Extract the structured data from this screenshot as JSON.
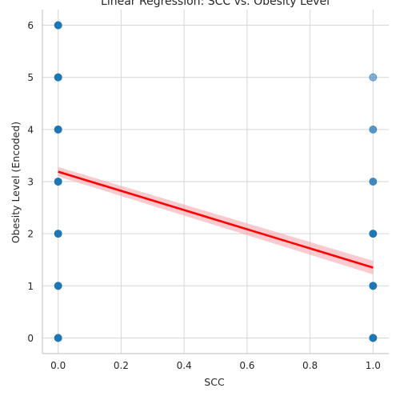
{
  "chart_data": {
    "type": "scatter",
    "title": "Linear Regression: SCC vs. Obesity Level",
    "xlabel": "SCC",
    "ylabel": "Obesity Level (Encoded)",
    "xlim": [
      -0.05,
      1.05
    ],
    "ylim": [
      -0.3,
      6.3
    ],
    "x_ticks": [
      0.0,
      0.2,
      0.4,
      0.6,
      0.8,
      1.0
    ],
    "x_tick_labels": [
      "0.0",
      "0.2",
      "0.4",
      "0.6",
      "0.8",
      "1.0"
    ],
    "y_ticks": [
      0,
      1,
      2,
      3,
      4,
      5,
      6
    ],
    "y_tick_labels": [
      "0",
      "1",
      "2",
      "3",
      "4",
      "5",
      "6"
    ],
    "grid": true,
    "series": [
      {
        "points": [
          {
            "x": 0,
            "y": 0,
            "density": "high"
          },
          {
            "x": 0,
            "y": 1,
            "density": "high"
          },
          {
            "x": 0,
            "y": 2,
            "density": "high"
          },
          {
            "x": 0,
            "y": 3,
            "density": "high"
          },
          {
            "x": 0,
            "y": 4,
            "density": "high"
          },
          {
            "x": 0,
            "y": 5,
            "density": "high"
          },
          {
            "x": 0,
            "y": 6,
            "density": "high"
          },
          {
            "x": 1,
            "y": 0,
            "density": "high"
          },
          {
            "x": 1,
            "y": 1,
            "density": "high"
          },
          {
            "x": 1,
            "y": 2,
            "density": "high"
          },
          {
            "x": 1,
            "y": 3,
            "density": "medium"
          },
          {
            "x": 1,
            "y": 4,
            "density": "low"
          },
          {
            "x": 1,
            "y": 5,
            "density": "single"
          }
        ],
        "color": "#1f77b4"
      }
    ],
    "regression": {
      "x": [
        0,
        1
      ],
      "y": [
        3.19,
        1.35
      ],
      "ci_lower": [
        3.1,
        1.22
      ],
      "ci_upper": [
        3.28,
        1.48
      ],
      "color": "#ff0000",
      "ci_color": "#f4a0a8"
    }
  }
}
